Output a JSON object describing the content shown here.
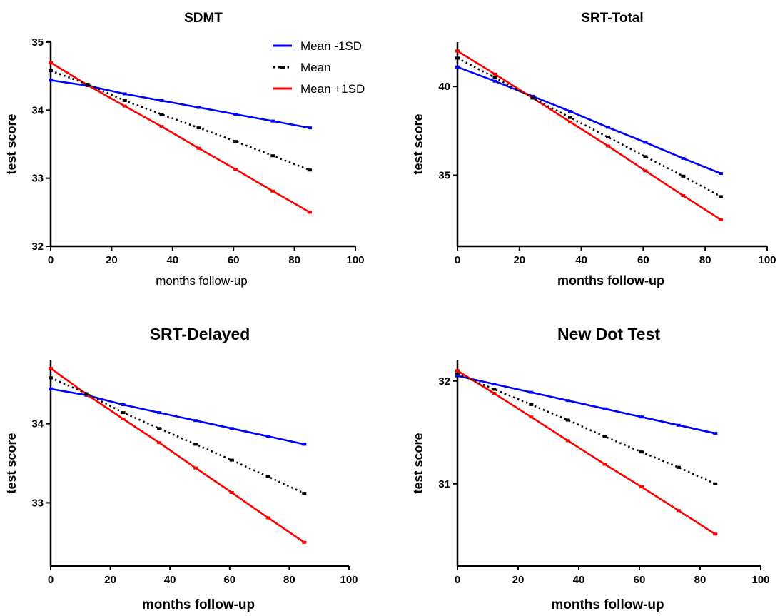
{
  "series_styles": [
    {
      "name": "Mean -1SD",
      "color": "#0000ff",
      "dash": "solid"
    },
    {
      "name": "Mean",
      "color": "#000000",
      "dash": "dotted"
    },
    {
      "name": "Mean +1SD",
      "color": "#ff0000",
      "dash": "solid"
    }
  ],
  "chart_data": [
    {
      "type": "line",
      "title": "SDMT",
      "xlabel": "months follow-up",
      "ylabel": "test score",
      "xlim": [
        0,
        100
      ],
      "ylim": [
        32,
        35
      ],
      "xticks": [
        0,
        20,
        40,
        60,
        80,
        100
      ],
      "yticks": [
        32,
        33,
        34,
        35
      ],
      "legend": "top-right",
      "x": [
        0,
        12.1,
        24.3,
        36.4,
        48.6,
        60.7,
        72.9,
        85
      ],
      "series": [
        {
          "name": "Mean -1SD",
          "values": [
            34.44,
            34.36,
            34.24,
            34.14,
            34.04,
            33.94,
            33.84,
            33.74
          ]
        },
        {
          "name": "Mean",
          "values": [
            34.58,
            34.38,
            34.14,
            33.94,
            33.74,
            33.54,
            33.33,
            33.12
          ]
        },
        {
          "name": "Mean +1SD",
          "values": [
            34.7,
            34.37,
            34.06,
            33.76,
            33.44,
            33.13,
            32.81,
            32.5
          ]
        }
      ]
    },
    {
      "type": "line",
      "title": "SRT-Total",
      "xlabel": "months follow-up",
      "ylabel": "test score",
      "xlim": [
        0,
        100
      ],
      "ylim": [
        31,
        42.5
      ],
      "xticks": [
        0,
        20,
        40,
        60,
        80,
        100
      ],
      "yticks": [
        35,
        40
      ],
      "legend": "none",
      "x": [
        0,
        12.1,
        24.3,
        36.4,
        48.6,
        60.7,
        72.9,
        85
      ],
      "series": [
        {
          "name": "Mean -1SD",
          "values": [
            41.1,
            40.3,
            39.45,
            38.6,
            37.7,
            36.85,
            35.95,
            35.1
          ]
        },
        {
          "name": "Mean",
          "values": [
            41.6,
            40.5,
            39.35,
            38.25,
            37.15,
            36.05,
            34.95,
            33.8
          ]
        },
        {
          "name": "Mean +1SD",
          "values": [
            42.0,
            40.7,
            39.35,
            38.0,
            36.65,
            35.25,
            33.85,
            32.5
          ]
        }
      ]
    },
    {
      "type": "line",
      "title": "SRT-Delayed",
      "xlabel": "months follow-up",
      "ylabel": "test score",
      "xlim": [
        0,
        100
      ],
      "ylim": [
        32.2,
        34.8
      ],
      "xticks": [
        0,
        20,
        40,
        60,
        80,
        100
      ],
      "yticks": [
        33,
        34
      ],
      "legend": "none",
      "x": [
        0,
        12.1,
        24.3,
        36.4,
        48.6,
        60.7,
        72.9,
        85
      ],
      "series": [
        {
          "name": "Mean -1SD",
          "values": [
            34.44,
            34.36,
            34.24,
            34.14,
            34.04,
            33.94,
            33.84,
            33.74
          ]
        },
        {
          "name": "Mean",
          "values": [
            34.58,
            34.38,
            34.14,
            33.94,
            33.74,
            33.54,
            33.33,
            33.12
          ]
        },
        {
          "name": "Mean +1SD",
          "values": [
            34.7,
            34.37,
            34.06,
            33.76,
            33.44,
            33.13,
            32.81,
            32.5
          ]
        }
      ]
    },
    {
      "type": "line",
      "title": "New Dot Test",
      "xlabel": "months follow-up",
      "ylabel": "test score",
      "xlim": [
        0,
        100
      ],
      "ylim": [
        30.2,
        32.2
      ],
      "xticks": [
        0,
        20,
        40,
        60,
        80,
        100
      ],
      "yticks": [
        31,
        32
      ],
      "legend": "none",
      "x": [
        0,
        12.1,
        24.3,
        36.4,
        48.6,
        60.7,
        72.9,
        85
      ],
      "series": [
        {
          "name": "Mean -1SD",
          "values": [
            32.05,
            31.97,
            31.89,
            31.81,
            31.73,
            31.65,
            31.57,
            31.49
          ]
        },
        {
          "name": "Mean",
          "values": [
            32.07,
            31.92,
            31.77,
            31.62,
            31.46,
            31.31,
            31.16,
            31.0
          ]
        },
        {
          "name": "Mean +1SD",
          "values": [
            32.1,
            31.88,
            31.65,
            31.42,
            31.19,
            30.97,
            30.74,
            30.51
          ]
        }
      ]
    }
  ]
}
